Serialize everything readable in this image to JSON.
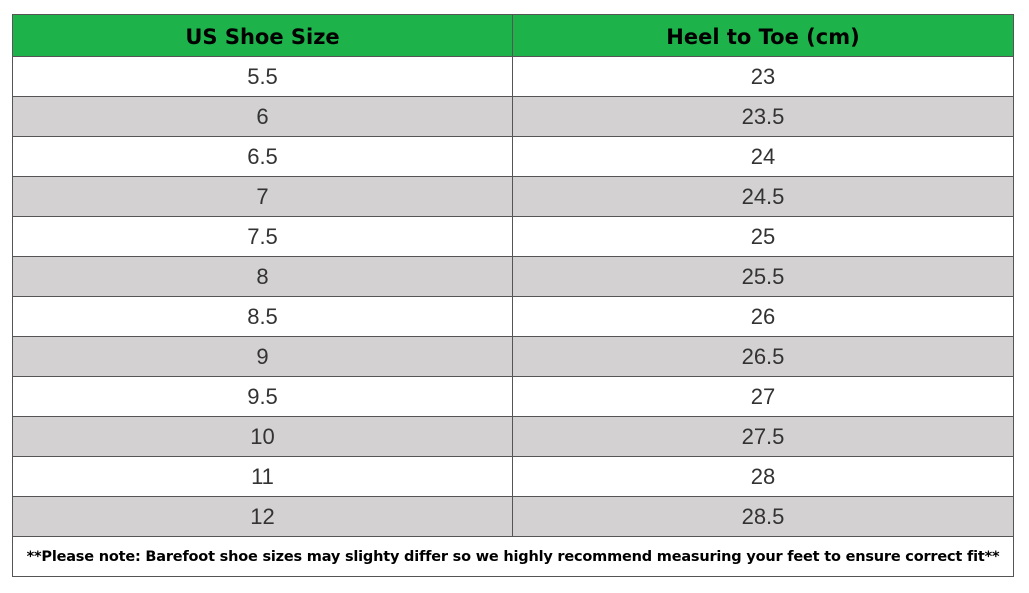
{
  "table": {
    "headers": [
      "US Shoe Size",
      "Heel to Toe (cm)"
    ],
    "rows": [
      [
        "5.5",
        "23"
      ],
      [
        "6",
        "23.5"
      ],
      [
        "6.5",
        "24"
      ],
      [
        "7",
        "24.5"
      ],
      [
        "7.5",
        "25"
      ],
      [
        "8",
        "25.5"
      ],
      [
        "8.5",
        "26"
      ],
      [
        "9",
        "26.5"
      ],
      [
        "9.5",
        "27"
      ],
      [
        "10",
        "27.5"
      ],
      [
        "11",
        "28"
      ],
      [
        "12",
        "28.5"
      ]
    ],
    "note": "**Please note: Barefoot shoe sizes may slighty differ so we highly recommend measuring your feet to ensure correct fit**"
  },
  "colors": {
    "header_bg": "#1db24a",
    "stripe_bg": "#d3d1d2",
    "row_bg": "#ffffff",
    "border": "#555555"
  }
}
